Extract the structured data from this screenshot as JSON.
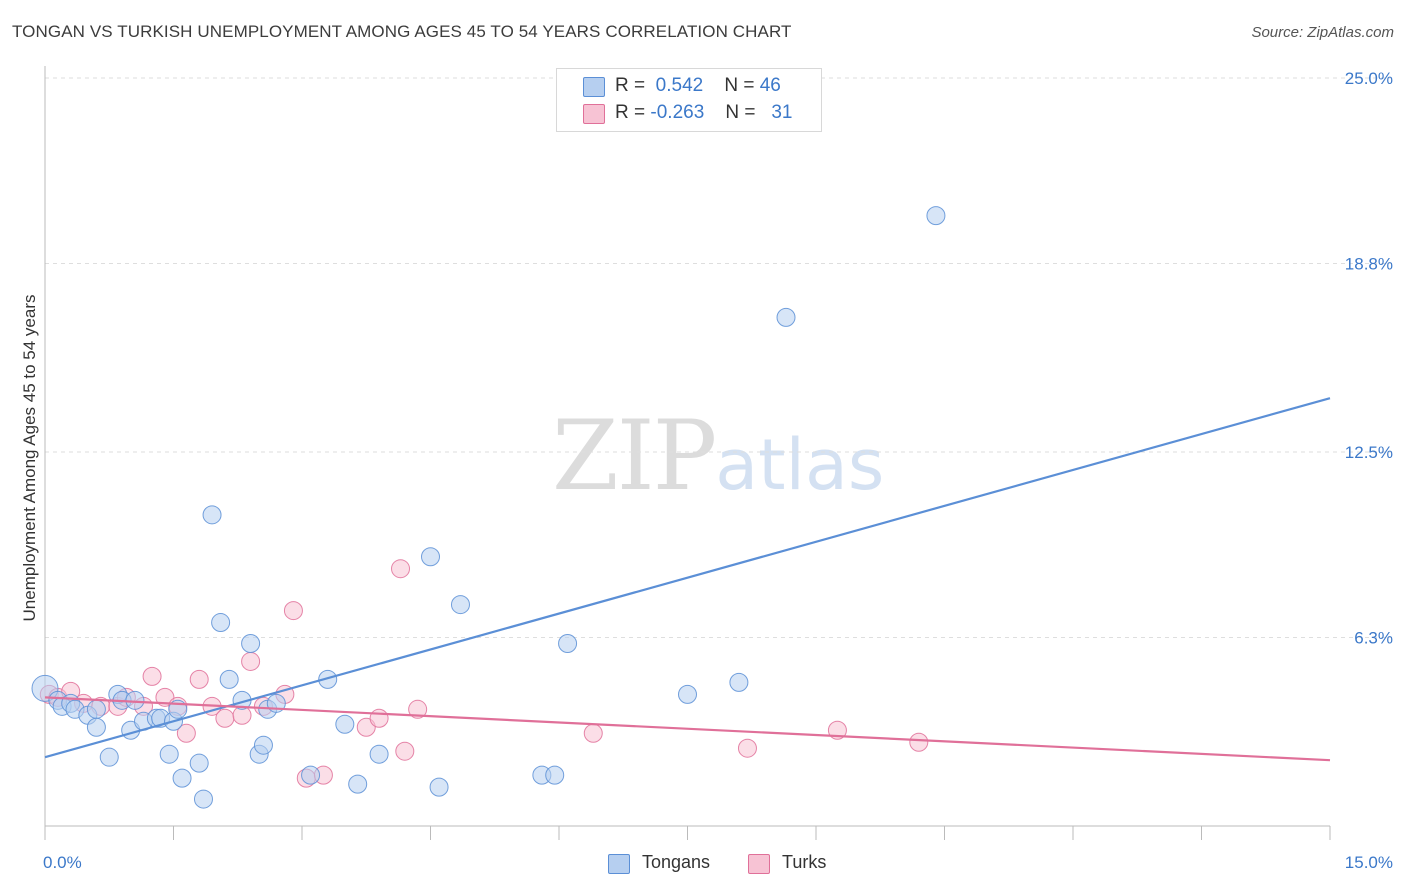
{
  "header": {
    "title": "TONGAN VS TURKISH UNEMPLOYMENT AMONG AGES 45 TO 54 YEARS CORRELATION CHART",
    "source": "Source: ZipAtlas.com"
  },
  "watermark": {
    "zip": "ZIP",
    "atlas": "atlas"
  },
  "legend": {
    "rows": [
      {
        "r_label": "R =",
        "r_value": "0.542",
        "n_label": "N =",
        "n_value": "46"
      },
      {
        "r_label": "R =",
        "r_value": "-0.263",
        "n_label": "N =",
        "n_value": "31"
      }
    ]
  },
  "chart_data": {
    "type": "scatter",
    "title": "TONGAN VS TURKISH UNEMPLOYMENT AMONG AGES 45 TO 54 YEARS CORRELATION CHART",
    "xlabel": "",
    "ylabel": "Unemployment Among Ages 45 to 54 years",
    "xlim": [
      0,
      15
    ],
    "ylim": [
      0,
      25
    ],
    "x_tick_labels": [
      "0.0%",
      "15.0%"
    ],
    "y_ticks": [
      6.3,
      12.5,
      18.8,
      25.0
    ],
    "y_tick_labels": [
      "6.3%",
      "12.5%",
      "18.8%",
      "25.0%"
    ],
    "grid": true,
    "legend_position": "top-center",
    "series": [
      {
        "name": "Tongans",
        "color": "#5b8fd6",
        "fill": "#b6cff0",
        "trend": {
          "x": [
            0,
            15
          ],
          "y": [
            2.3,
            14.3
          ]
        },
        "points": [
          [
            0.0,
            4.6
          ],
          [
            0.15,
            4.2
          ],
          [
            0.2,
            4.0
          ],
          [
            0.3,
            4.1
          ],
          [
            0.35,
            3.9
          ],
          [
            0.5,
            3.7
          ],
          [
            0.6,
            3.9
          ],
          [
            0.6,
            3.3
          ],
          [
            0.75,
            2.3
          ],
          [
            0.85,
            4.4
          ],
          [
            0.9,
            4.2
          ],
          [
            1.05,
            4.2
          ],
          [
            1.0,
            3.2
          ],
          [
            1.15,
            3.5
          ],
          [
            1.3,
            3.6
          ],
          [
            1.35,
            3.6
          ],
          [
            1.45,
            2.4
          ],
          [
            1.5,
            3.5
          ],
          [
            1.55,
            3.9
          ],
          [
            1.6,
            1.6
          ],
          [
            1.8,
            2.1
          ],
          [
            1.85,
            0.9
          ],
          [
            1.95,
            10.4
          ],
          [
            2.05,
            6.8
          ],
          [
            2.15,
            4.9
          ],
          [
            2.3,
            4.2
          ],
          [
            2.4,
            6.1
          ],
          [
            2.5,
            2.4
          ],
          [
            2.55,
            2.7
          ],
          [
            2.6,
            3.9
          ],
          [
            2.7,
            4.1
          ],
          [
            3.1,
            1.7
          ],
          [
            3.3,
            4.9
          ],
          [
            3.5,
            3.4
          ],
          [
            3.65,
            1.4
          ],
          [
            3.9,
            2.4
          ],
          [
            4.5,
            9.0
          ],
          [
            4.6,
            1.3
          ],
          [
            4.85,
            7.4
          ],
          [
            5.8,
            1.7
          ],
          [
            5.95,
            1.7
          ],
          [
            6.1,
            6.1
          ],
          [
            7.5,
            4.4
          ],
          [
            8.1,
            4.8
          ],
          [
            8.65,
            17.0
          ],
          [
            10.4,
            20.4
          ]
        ]
      },
      {
        "name": "Turks",
        "color": "#e07099",
        "fill": "#f7c3d4",
        "trend": {
          "x": [
            0,
            15
          ],
          "y": [
            4.3,
            2.2
          ]
        },
        "points": [
          [
            0.05,
            4.4
          ],
          [
            0.15,
            4.3
          ],
          [
            0.3,
            4.5
          ],
          [
            0.45,
            4.1
          ],
          [
            0.65,
            4.0
          ],
          [
            0.85,
            4.0
          ],
          [
            0.95,
            4.3
          ],
          [
            1.15,
            4.0
          ],
          [
            1.25,
            5.0
          ],
          [
            1.4,
            4.3
          ],
          [
            1.55,
            4.0
          ],
          [
            1.65,
            3.1
          ],
          [
            1.8,
            4.9
          ],
          [
            1.95,
            4.0
          ],
          [
            2.1,
            3.6
          ],
          [
            2.3,
            3.7
          ],
          [
            2.4,
            5.5
          ],
          [
            2.55,
            4.0
          ],
          [
            2.8,
            4.4
          ],
          [
            2.9,
            7.2
          ],
          [
            3.05,
            1.6
          ],
          [
            3.25,
            1.7
          ],
          [
            3.75,
            3.3
          ],
          [
            3.9,
            3.6
          ],
          [
            4.15,
            8.6
          ],
          [
            4.2,
            2.5
          ],
          [
            4.35,
            3.9
          ],
          [
            6.4,
            3.1
          ],
          [
            8.2,
            2.6
          ],
          [
            9.25,
            3.2
          ],
          [
            10.2,
            2.8
          ]
        ]
      }
    ]
  }
}
